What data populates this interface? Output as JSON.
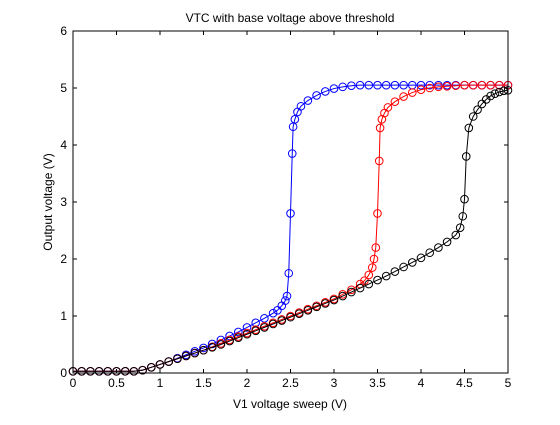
{
  "chart_data": {
    "type": "line",
    "title": "VTC with base voltage above threshold",
    "xlabel": "V1 voltage sweep (V)",
    "ylabel": "Output voltage (V)",
    "xlim": [
      0,
      5
    ],
    "ylim": [
      0,
      6
    ],
    "xticks": [
      0,
      0.5,
      1,
      1.5,
      2,
      2.5,
      3,
      3.5,
      4,
      4.5,
      5
    ],
    "yticks": [
      0,
      1,
      2,
      3,
      4,
      5,
      6
    ],
    "grid": false,
    "legend": "none",
    "marker": "open-circle",
    "series": [
      {
        "color": "#0000ff",
        "x": [
          0,
          0.1,
          0.2,
          0.3,
          0.4,
          0.5,
          0.6,
          0.7,
          0.8,
          0.9,
          1.0,
          1.1,
          1.2,
          1.3,
          1.4,
          1.5,
          1.6,
          1.7,
          1.8,
          1.9,
          2.0,
          2.1,
          2.2,
          2.3,
          2.35,
          2.4,
          2.44,
          2.46,
          2.48,
          2.5,
          2.52,
          2.53,
          2.55,
          2.58,
          2.62,
          2.7,
          2.8,
          2.9,
          3.0,
          3.1,
          3.2,
          3.3,
          3.4,
          3.5,
          3.6,
          3.7,
          3.8,
          3.9,
          4.0,
          4.1,
          4.2,
          4.3,
          4.4,
          4.5,
          4.6,
          4.7,
          4.8,
          4.9,
          5.0
        ],
        "y": [
          0.03,
          0.03,
          0.03,
          0.03,
          0.03,
          0.03,
          0.03,
          0.03,
          0.05,
          0.1,
          0.15,
          0.2,
          0.26,
          0.32,
          0.38,
          0.44,
          0.51,
          0.58,
          0.65,
          0.72,
          0.8,
          0.88,
          0.96,
          1.05,
          1.1,
          1.18,
          1.27,
          1.35,
          1.75,
          2.8,
          3.85,
          4.32,
          4.45,
          4.58,
          4.68,
          4.78,
          4.87,
          4.94,
          4.99,
          5.02,
          5.04,
          5.05,
          5.05,
          5.05,
          5.05,
          5.05,
          5.05,
          5.05,
          5.05,
          5.05,
          5.05,
          5.05,
          5.05,
          5.05,
          5.05,
          5.05,
          5.05,
          5.05,
          5.05
        ]
      },
      {
        "color": "#ff0000",
        "x": [
          0,
          0.1,
          0.2,
          0.3,
          0.4,
          0.5,
          0.6,
          0.7,
          0.8,
          0.9,
          1.0,
          1.1,
          1.2,
          1.3,
          1.4,
          1.5,
          1.6,
          1.7,
          1.8,
          1.9,
          2.0,
          2.1,
          2.2,
          2.3,
          2.4,
          2.5,
          2.6,
          2.7,
          2.8,
          2.9,
          3.0,
          3.1,
          3.2,
          3.3,
          3.35,
          3.4,
          3.44,
          3.46,
          3.48,
          3.5,
          3.52,
          3.53,
          3.55,
          3.58,
          3.62,
          3.7,
          3.8,
          3.9,
          4.0,
          4.1,
          4.2,
          4.3,
          4.4,
          4.5,
          4.6,
          4.7,
          4.8,
          4.9,
          5.0
        ],
        "y": [
          0.03,
          0.03,
          0.03,
          0.03,
          0.03,
          0.03,
          0.03,
          0.03,
          0.05,
          0.1,
          0.15,
          0.2,
          0.25,
          0.3,
          0.35,
          0.4,
          0.46,
          0.52,
          0.58,
          0.64,
          0.7,
          0.76,
          0.82,
          0.88,
          0.94,
          1.0,
          1.06,
          1.12,
          1.18,
          1.24,
          1.3,
          1.38,
          1.46,
          1.56,
          1.62,
          1.72,
          1.85,
          2.0,
          2.2,
          2.8,
          3.72,
          4.3,
          4.45,
          4.56,
          4.66,
          4.76,
          4.85,
          4.92,
          4.97,
          5.0,
          5.02,
          5.03,
          5.04,
          5.05,
          5.05,
          5.05,
          5.05,
          5.05,
          5.05
        ]
      },
      {
        "color": "#000000",
        "x": [
          0,
          0.1,
          0.2,
          0.3,
          0.4,
          0.5,
          0.6,
          0.7,
          0.8,
          0.9,
          1.0,
          1.1,
          1.2,
          1.3,
          1.4,
          1.5,
          1.6,
          1.7,
          1.8,
          1.9,
          2.0,
          2.1,
          2.2,
          2.3,
          2.4,
          2.5,
          2.6,
          2.7,
          2.8,
          2.9,
          3.0,
          3.1,
          3.2,
          3.3,
          3.4,
          3.5,
          3.6,
          3.7,
          3.8,
          3.9,
          4.0,
          4.1,
          4.2,
          4.3,
          4.4,
          4.45,
          4.48,
          4.5,
          4.52,
          4.55,
          4.6,
          4.65,
          4.7,
          4.75,
          4.8,
          4.85,
          4.9,
          4.95,
          5.0
        ],
        "y": [
          0.03,
          0.03,
          0.03,
          0.03,
          0.03,
          0.03,
          0.03,
          0.03,
          0.05,
          0.1,
          0.15,
          0.2,
          0.25,
          0.3,
          0.35,
          0.4,
          0.45,
          0.5,
          0.56,
          0.62,
          0.68,
          0.74,
          0.8,
          0.86,
          0.92,
          0.98,
          1.04,
          1.1,
          1.16,
          1.22,
          1.28,
          1.35,
          1.42,
          1.49,
          1.56,
          1.63,
          1.7,
          1.78,
          1.86,
          1.94,
          2.02,
          2.11,
          2.2,
          2.3,
          2.42,
          2.55,
          2.75,
          3.05,
          3.8,
          4.3,
          4.5,
          4.62,
          4.72,
          4.8,
          4.86,
          4.9,
          4.93,
          4.95,
          4.96
        ]
      }
    ]
  }
}
